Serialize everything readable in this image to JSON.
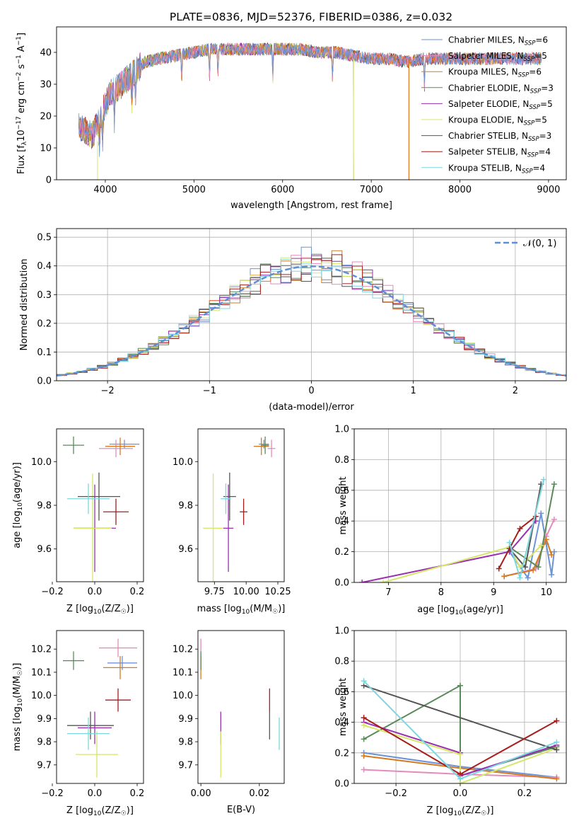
{
  "title": "PLATE=0836, MJD=52376, FIBERID=0386, z=0.032",
  "colors": {
    "Chabrier MILES": "#6c93d8",
    "Salpeter MILES": "#e48bbb",
    "Kroupa MILES": "#d47b1f",
    "Chabrier ELODIE": "#5a8a5a",
    "Salpeter ELODIE": "#9a2fb0",
    "Kroupa ELODIE": "#d6e66a",
    "Chabrier STELIB": "#555555",
    "Salpeter STELIB": "#a81d1d",
    "Kroupa STELIB": "#7dd7e0",
    "gauss": "#5e8fd6"
  },
  "chart_data": [
    {
      "id": "spectrum",
      "type": "line",
      "xlabel": "wavelength [Angstrom, rest frame]",
      "ylabel": "Flux [f",
      "ylabel_parts": [
        "Flux [f",
        "λ",
        "10",
        "−17",
        " erg cm",
        "−2",
        " s",
        "−1",
        " A",
        "−1",
        "]"
      ],
      "xlim": [
        3450,
        9200
      ],
      "ylim": [
        0,
        48
      ],
      "xticks": [
        "4000",
        "5000",
        "6000",
        "7000",
        "8000",
        "9000"
      ],
      "yticks": [
        "0",
        "10",
        "20",
        "30",
        "40"
      ],
      "legend": {
        "placement": "top-right",
        "entries": [
          {
            "name": "Chabrier MILES",
            "n": "6"
          },
          {
            "name": "Salpeter MILES",
            "n": "5"
          },
          {
            "name": "Kroupa MILES",
            "n": "6"
          },
          {
            "name": "Chabrier ELODIE",
            "n": "3"
          },
          {
            "name": "Salpeter ELODIE",
            "n": "5"
          },
          {
            "name": "Kroupa ELODIE",
            "n": "5"
          },
          {
            "name": "Chabrier STELIB",
            "n": "3"
          },
          {
            "name": "Salpeter STELIB",
            "n": "4"
          },
          {
            "name": "Kroupa STELIB",
            "n": "4"
          }
        ],
        "n_prefix": ", N",
        "n_sub": "SSP",
        "n_eq": "="
      },
      "continuum": [
        [
          3700,
          17
        ],
        [
          3850,
          14
        ],
        [
          3950,
          20
        ],
        [
          4050,
          27
        ],
        [
          4150,
          29
        ],
        [
          4300,
          33
        ],
        [
          4450,
          37
        ],
        [
          4600,
          38
        ],
        [
          4800,
          39
        ],
        [
          5000,
          40
        ],
        [
          5200,
          41
        ],
        [
          5400,
          41
        ],
        [
          5600,
          41
        ],
        [
          5800,
          41
        ],
        [
          6000,
          41
        ],
        [
          6200,
          41
        ],
        [
          6400,
          40
        ],
        [
          6600,
          40
        ],
        [
          6800,
          39
        ],
        [
          7000,
          38
        ],
        [
          7200,
          38
        ],
        [
          7400,
          37
        ],
        [
          7600,
          38
        ],
        [
          7800,
          38
        ],
        [
          8000,
          38
        ],
        [
          8200,
          38
        ],
        [
          8400,
          38
        ],
        [
          8600,
          38
        ],
        [
          8800,
          38
        ],
        [
          8920,
          38
        ]
      ]
    },
    {
      "id": "residuals",
      "type": "histogram",
      "xlabel": "(data-model)/error",
      "ylabel": "Normed distribution",
      "xlim": [
        -2.5,
        2.5
      ],
      "ylim": [
        0,
        0.53
      ],
      "xticks": [
        "−2",
        "−1",
        "0",
        "1",
        "2"
      ],
      "yticks": [
        "0.0",
        "0.1",
        "0.2",
        "0.3",
        "0.4",
        "0.5"
      ],
      "grid": true,
      "legend": {
        "placement": "top-right",
        "label": "𝒩(0, 1)"
      },
      "bin_width": 0.1
    },
    {
      "id": "age_vs_Z",
      "type": "scatter",
      "xlabel": "Z [log",
      "xlabel_parts": [
        "Z [log",
        "10",
        "(Z/Z",
        "☉",
        ")]"
      ],
      "ylabel_parts": [
        "age  [log",
        "10",
        "(age/yr)]"
      ],
      "xlim": [
        -0.18,
        0.23
      ],
      "ylim": [
        9.45,
        10.15
      ],
      "xticks": [
        "−0.2",
        "0.0",
        "0.2"
      ],
      "yticks": [
        "9.6",
        "9.8",
        "10.0"
      ],
      "points": [
        {
          "s": "Chabrier MILES",
          "x": 0.14,
          "y": 10.08,
          "ex": 0.07,
          "ey": 0.02
        },
        {
          "s": "Salpeter MILES",
          "x": 0.1,
          "y": 10.06,
          "ex": 0.08,
          "ey": 0.04
        },
        {
          "s": "Kroupa MILES",
          "x": 0.12,
          "y": 10.07,
          "ex": 0.07,
          "ey": 0.04
        },
        {
          "s": "Chabrier ELODIE",
          "x": -0.1,
          "y": 10.075,
          "ex": 0.05,
          "ey": 0.04
        },
        {
          "s": "Salpeter ELODIE",
          "x": 0.0,
          "y": 9.695,
          "ex": 0.1,
          "ey": 0.2
        },
        {
          "s": "Kroupa ELODIE",
          "x": -0.01,
          "y": 9.695,
          "ex": 0.09,
          "ey": 0.25
        },
        {
          "s": "Chabrier STELIB",
          "x": 0.02,
          "y": 9.84,
          "ex": 0.1,
          "ey": 0.11
        },
        {
          "s": "Salpeter STELIB",
          "x": 0.1,
          "y": 9.77,
          "ex": 0.06,
          "ey": 0.06
        },
        {
          "s": "Kroupa STELIB",
          "x": -0.03,
          "y": 9.83,
          "ex": 0.1,
          "ey": 0.07
        }
      ]
    },
    {
      "id": "age_vs_mass",
      "type": "scatter",
      "xlabel_parts": [
        "mass [log",
        "10",
        "(M/M",
        "☉",
        ")]"
      ],
      "xlim": [
        9.62,
        10.3
      ],
      "ylim": [
        9.45,
        10.15
      ],
      "xticks": [
        "9.75",
        "10.00",
        "10.25"
      ],
      "yticks": [
        "9.6",
        "9.8",
        "10.0"
      ],
      "points": [
        {
          "s": "Chabrier MILES",
          "x": 10.14,
          "y": 10.08,
          "ex": 0.04,
          "ey": 0.02
        },
        {
          "s": "Salpeter MILES",
          "x": 10.2,
          "y": 10.06,
          "ex": 0.03,
          "ey": 0.04
        },
        {
          "s": "Kroupa MILES",
          "x": 10.12,
          "y": 10.07,
          "ex": 0.06,
          "ey": 0.04
        },
        {
          "s": "Chabrier ELODIE",
          "x": 10.15,
          "y": 10.075,
          "ex": 0.03,
          "ey": 0.04
        },
        {
          "s": "Salpeter ELODIE",
          "x": 9.86,
          "y": 9.695,
          "ex": 0.04,
          "ey": 0.2
        },
        {
          "s": "Kroupa ELODIE",
          "x": 9.74,
          "y": 9.695,
          "ex": 0.08,
          "ey": 0.25
        },
        {
          "s": "Chabrier STELIB",
          "x": 9.87,
          "y": 9.84,
          "ex": 0.05,
          "ey": 0.11
        },
        {
          "s": "Salpeter STELIB",
          "x": 9.98,
          "y": 9.77,
          "ex": 0.03,
          "ey": 0.06
        },
        {
          "s": "Kroupa STELIB",
          "x": 9.84,
          "y": 9.83,
          "ex": 0.04,
          "ey": 0.07
        }
      ]
    },
    {
      "id": "weight_vs_age",
      "type": "line",
      "xlabel_parts": [
        "age  [log",
        "10",
        "(age/yr)]"
      ],
      "ylabel": "mass weight",
      "xlim": [
        6.35,
        10.38
      ],
      "ylim": [
        0,
        1.0
      ],
      "xticks": [
        "7",
        "8",
        "9",
        "10"
      ],
      "yticks": [
        "0.0",
        "0.2",
        "0.4",
        "0.6",
        "0.8",
        "1.0"
      ],
      "grid": true,
      "series": [
        {
          "s": "Chabrier MILES",
          "pts": [
            [
              9.3,
              0.2
            ],
            [
              9.65,
              0.03
            ],
            [
              9.9,
              0.45
            ],
            [
              10.0,
              0.25
            ],
            [
              10.1,
              0.05
            ],
            [
              10.15,
              0.2
            ]
          ]
        },
        {
          "s": "Salpeter MILES",
          "pts": [
            [
              9.2,
              0.04
            ],
            [
              9.8,
              0.09
            ],
            [
              10.0,
              0.3
            ],
            [
              10.15,
              0.41
            ]
          ]
        },
        {
          "s": "Kroupa MILES",
          "pts": [
            [
              9.2,
              0.04
            ],
            [
              9.75,
              0.08
            ],
            [
              10.0,
              0.28
            ],
            [
              10.1,
              0.18
            ]
          ]
        },
        {
          "s": "Chabrier ELODIE",
          "pts": [
            [
              9.3,
              0.23
            ],
            [
              9.85,
              0.1
            ],
            [
              10.15,
              0.64
            ]
          ]
        },
        {
          "s": "Salpeter ELODIE",
          "pts": [
            [
              6.5,
              0.0
            ],
            [
              9.3,
              0.2
            ],
            [
              9.8,
              0.4
            ]
          ]
        },
        {
          "s": "Kroupa ELODIE",
          "pts": [
            [
              6.9,
              0.0
            ],
            [
              9.3,
              0.23
            ],
            [
              9.5,
              0.1
            ],
            [
              9.9,
              0.24
            ]
          ]
        },
        {
          "s": "Chabrier STELIB",
          "pts": [
            [
              9.3,
              0.22
            ],
            [
              9.6,
              0.1
            ],
            [
              9.9,
              0.64
            ]
          ]
        },
        {
          "s": "Salpeter STELIB",
          "pts": [
            [
              9.1,
              0.09
            ],
            [
              9.5,
              0.35
            ],
            [
              9.8,
              0.43
            ]
          ]
        },
        {
          "s": "Kroupa STELIB",
          "pts": [
            [
              9.3,
              0.26
            ],
            [
              9.5,
              0.03
            ],
            [
              9.95,
              0.67
            ]
          ]
        }
      ]
    },
    {
      "id": "mass_vs_Z",
      "type": "scatter",
      "xlabel_parts": [
        "Z [log",
        "10",
        "(Z/Z",
        "☉",
        ")]"
      ],
      "ylabel_parts": [
        "mass [log",
        "10",
        "(M/M",
        "☉",
        ")]"
      ],
      "xlim": [
        -0.18,
        0.23
      ],
      "ylim": [
        9.62,
        10.28
      ],
      "xticks": [
        "−0.2",
        "0.0",
        "0.2"
      ],
      "yticks": [
        "9.7",
        "9.8",
        "9.9",
        "10.0",
        "10.1",
        "10.2"
      ],
      "points": [
        {
          "s": "Chabrier MILES",
          "x": 0.13,
          "y": 10.14,
          "ex": 0.07,
          "ey": 0.03
        },
        {
          "s": "Salpeter MILES",
          "x": 0.11,
          "y": 10.205,
          "ex": 0.09,
          "ey": 0.04
        },
        {
          "s": "Kroupa MILES",
          "x": 0.12,
          "y": 10.12,
          "ex": 0.08,
          "ey": 0.05
        },
        {
          "s": "Chabrier ELODIE",
          "x": -0.1,
          "y": 10.15,
          "ex": 0.05,
          "ey": 0.04
        },
        {
          "s": "Salpeter ELODIE",
          "x": 0.0,
          "y": 9.86,
          "ex": 0.08,
          "ey": 0.07
        },
        {
          "s": "Kroupa ELODIE",
          "x": 0.01,
          "y": 9.745,
          "ex": 0.1,
          "ey": 0.1
        },
        {
          "s": "Chabrier STELIB",
          "x": -0.02,
          "y": 9.87,
          "ex": 0.11,
          "ey": 0.06
        },
        {
          "s": "Salpeter STELIB",
          "x": 0.11,
          "y": 9.98,
          "ex": 0.06,
          "ey": 0.05
        },
        {
          "s": "Kroupa STELIB",
          "x": -0.03,
          "y": 9.835,
          "ex": 0.1,
          "ey": 0.07
        }
      ]
    },
    {
      "id": "mass_vs_ebv",
      "type": "scatter",
      "xlabel": "E(B-V)",
      "xlim": [
        -0.001,
        0.0285
      ],
      "ylim": [
        9.62,
        10.28
      ],
      "xticks": [
        "0.00",
        "0.02"
      ],
      "yticks": [
        "9.7",
        "9.8",
        "9.9",
        "10.0",
        "10.1",
        "10.2"
      ],
      "points": [
        {
          "s": "Chabrier MILES",
          "x": 0.0,
          "y": 10.14,
          "ex": 0.0,
          "ey": 0.03
        },
        {
          "s": "Salpeter MILES",
          "x": 0.0,
          "y": 10.205,
          "ex": 0.0,
          "ey": 0.04
        },
        {
          "s": "Kroupa MILES",
          "x": 0.0,
          "y": 10.12,
          "ex": 0.0,
          "ey": 0.05
        },
        {
          "s": "Chabrier ELODIE",
          "x": 0.0,
          "y": 10.15,
          "ex": 0.0,
          "ey": 0.04
        },
        {
          "s": "Salpeter ELODIE",
          "x": 0.0068,
          "y": 9.86,
          "ex": 0.0,
          "ey": 0.07
        },
        {
          "s": "Kroupa ELODIE",
          "x": 0.0068,
          "y": 9.745,
          "ex": 0.0,
          "ey": 0.1
        },
        {
          "s": "Chabrier STELIB",
          "x": 0.0235,
          "y": 9.87,
          "ex": 0.0,
          "ey": 0.06
        },
        {
          "s": "Salpeter STELIB",
          "x": 0.0235,
          "y": 9.98,
          "ex": 0.0,
          "ey": 0.05
        },
        {
          "s": "Kroupa STELIB",
          "x": 0.0268,
          "y": 9.835,
          "ex": 0.0,
          "ey": 0.07
        }
      ]
    },
    {
      "id": "weight_vs_Z",
      "type": "line",
      "xlabel_parts": [
        "Z [log",
        "10",
        "(Z/Z",
        "☉",
        ")]"
      ],
      "ylabel": "mass weight",
      "xlim": [
        -0.33,
        0.33
      ],
      "ylim": [
        0,
        1.0
      ],
      "xticks": [
        "−0.2",
        "0.0",
        "0.2"
      ],
      "yticks": [
        "0.0",
        "0.2",
        "0.4",
        "0.6",
        "0.8",
        "1.0"
      ],
      "grid": true,
      "series": [
        {
          "s": "Chabrier MILES",
          "pts": [
            [
              -0.3,
              0.2
            ],
            [
              0.0,
              0.11
            ],
            [
              0.3,
              0.04
            ]
          ]
        },
        {
          "s": "Salpeter MILES",
          "pts": [
            [
              -0.3,
              0.09
            ],
            [
              0.0,
              0.06
            ],
            [
              0.3,
              0.04
            ]
          ]
        },
        {
          "s": "Kroupa MILES",
          "pts": [
            [
              -0.3,
              0.18
            ],
            [
              0.0,
              0.1
            ],
            [
              0.3,
              0.03
            ]
          ]
        },
        {
          "s": "Chabrier ELODIE",
          "pts": [
            [
              -0.3,
              0.29
            ],
            [
              0.0,
              0.64
            ],
            [
              0.0,
              0.05
            ],
            [
              0.3,
              0.24
            ]
          ]
        },
        {
          "s": "Salpeter ELODIE",
          "pts": [
            [
              -0.3,
              0.4
            ],
            [
              0.0,
              0.2
            ],
            [
              0.0,
              0.05
            ],
            [
              0.3,
              0.25
            ]
          ]
        },
        {
          "s": "Kroupa ELODIE",
          "pts": [
            [
              -0.3,
              0.38
            ],
            [
              0.0,
              0.19
            ],
            [
              0.0,
              0.0
            ],
            [
              0.3,
              0.23
            ]
          ]
        },
        {
          "s": "Chabrier STELIB",
          "pts": [
            [
              -0.3,
              0.64
            ],
            [
              0.3,
              0.22
            ]
          ]
        },
        {
          "s": "Salpeter STELIB",
          "pts": [
            [
              -0.3,
              0.43
            ],
            [
              0.0,
              0.06
            ],
            [
              0.3,
              0.41
            ]
          ]
        },
        {
          "s": "Kroupa STELIB",
          "pts": [
            [
              -0.3,
              0.67
            ],
            [
              0.0,
              0.03
            ],
            [
              0.3,
              0.27
            ]
          ]
        }
      ]
    }
  ]
}
